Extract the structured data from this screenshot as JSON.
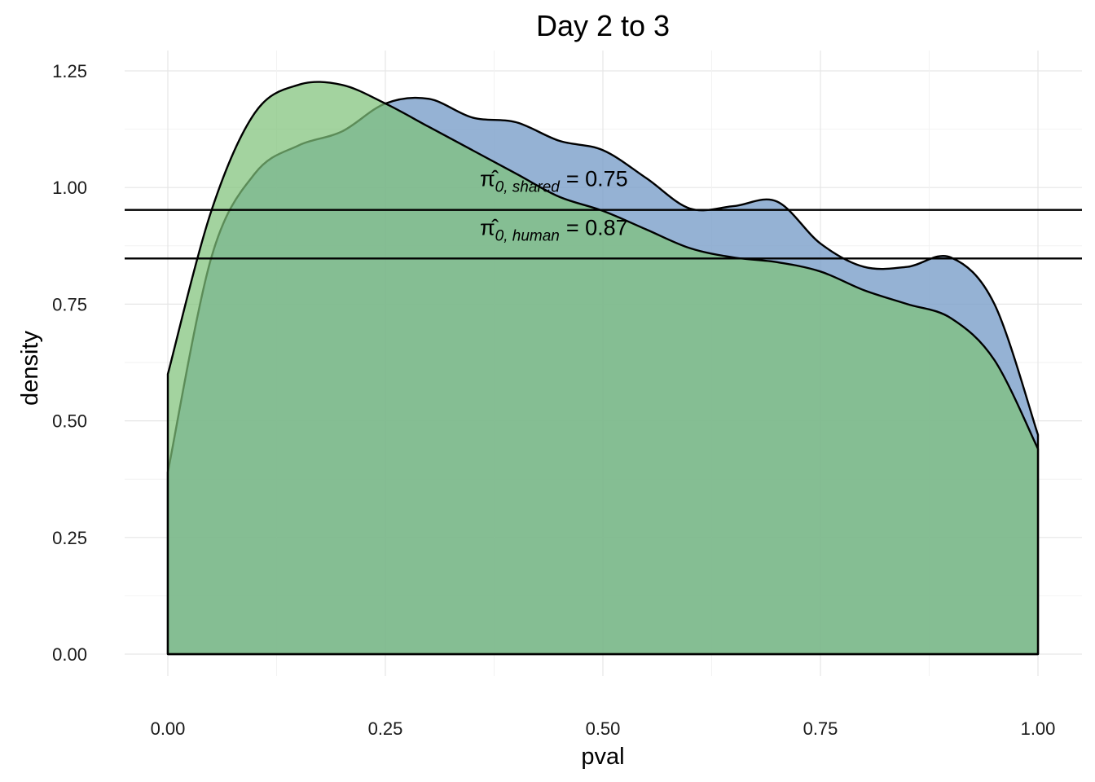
{
  "chart_data": {
    "type": "area",
    "title": "Day 2 to 3",
    "xlabel": "pval",
    "ylabel": "density",
    "xlim": [
      0,
      1
    ],
    "ylim": [
      0,
      1.25
    ],
    "x_ticks": [
      "0.00",
      "0.25",
      "0.50",
      "0.75",
      "1.00"
    ],
    "y_ticks": [
      "0.00",
      "0.25",
      "0.50",
      "0.75",
      "1.00",
      "1.25"
    ],
    "grid": true,
    "legend": "none",
    "colors": {
      "blue_fill": "#7a9fc9",
      "green_fill": "#7fc27a",
      "overlap_fill": "#6aa985",
      "outline": "#000000"
    },
    "series": [
      {
        "color": "#7a9fc9",
        "x": [
          0.0,
          0.05,
          0.1,
          0.15,
          0.2,
          0.25,
          0.3,
          0.35,
          0.4,
          0.45,
          0.5,
          0.55,
          0.6,
          0.65,
          0.7,
          0.75,
          0.8,
          0.85,
          0.9,
          0.95,
          1.0
        ],
        "y": [
          0.39,
          0.85,
          1.03,
          1.09,
          1.12,
          1.18,
          1.19,
          1.15,
          1.14,
          1.1,
          1.08,
          1.02,
          0.955,
          0.96,
          0.97,
          0.88,
          0.83,
          0.83,
          0.85,
          0.75,
          0.47
        ]
      },
      {
        "color": "#7fc27a",
        "x": [
          0.0,
          0.05,
          0.1,
          0.15,
          0.2,
          0.25,
          0.3,
          0.35,
          0.4,
          0.45,
          0.5,
          0.55,
          0.6,
          0.65,
          0.7,
          0.75,
          0.8,
          0.85,
          0.9,
          0.95,
          1.0
        ],
        "y": [
          0.6,
          0.95,
          1.16,
          1.22,
          1.22,
          1.18,
          1.13,
          1.08,
          1.03,
          0.98,
          0.95,
          0.91,
          0.87,
          0.85,
          0.84,
          0.82,
          0.78,
          0.75,
          0.72,
          0.63,
          0.44
        ]
      }
    ],
    "hlines": [
      {
        "y": 0.952,
        "label_sub": "0, shared",
        "label_value": "= 0.75"
      },
      {
        "y": 0.848,
        "label_sub": "0, human",
        "label_value": "= 0.87"
      }
    ],
    "annotation_symbol": "π̂"
  }
}
